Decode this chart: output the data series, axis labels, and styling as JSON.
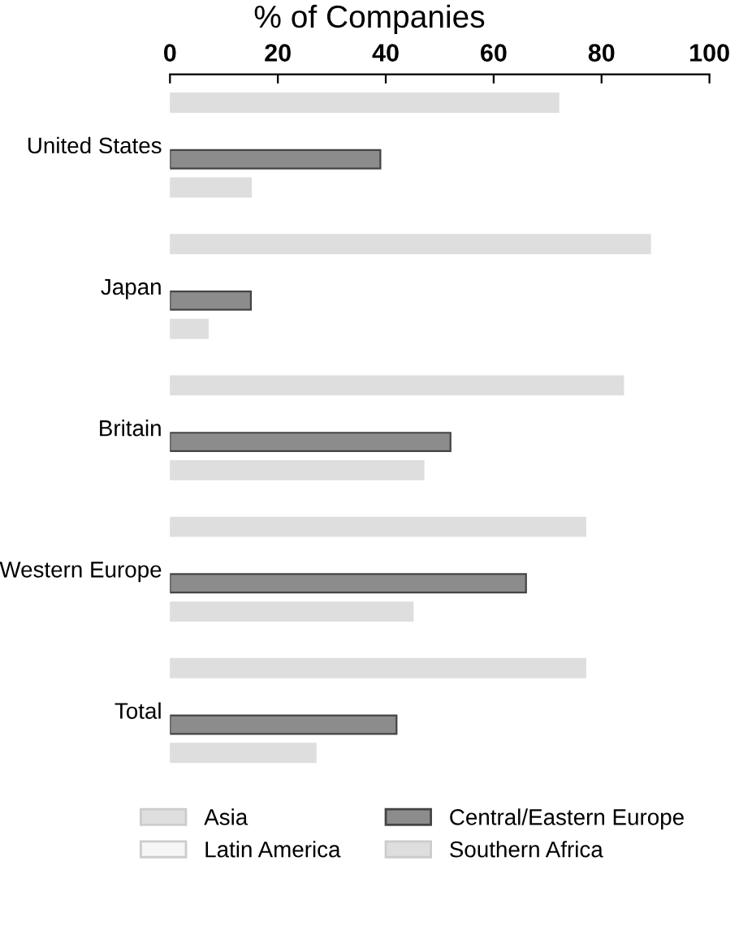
{
  "chart_data": {
    "type": "bar",
    "orientation": "horizontal",
    "title": "% of Companies",
    "categories": [
      "United States",
      "Japan",
      "Britain",
      "Western Europe",
      "Total"
    ],
    "series": [
      {
        "name": "Asia",
        "color": "#dedede",
        "values": [
          72,
          89,
          84,
          77,
          77
        ]
      },
      {
        "name": "Latin America",
        "color": "#f6f6f6",
        "values": [
          null,
          null,
          null,
          null,
          null
        ]
      },
      {
        "name": "Central/Eastern Europe",
        "color": "#8c8c8c",
        "values": [
          39,
          15,
          52,
          66,
          42
        ]
      },
      {
        "name": "Southern Africa",
        "color": "#dedede",
        "values": [
          15,
          7,
          47,
          45,
          27
        ]
      }
    ],
    "xlim": [
      0,
      100
    ],
    "xticks": [
      0,
      20,
      40,
      60,
      80,
      100
    ],
    "grid": false,
    "legend": "bottom"
  }
}
